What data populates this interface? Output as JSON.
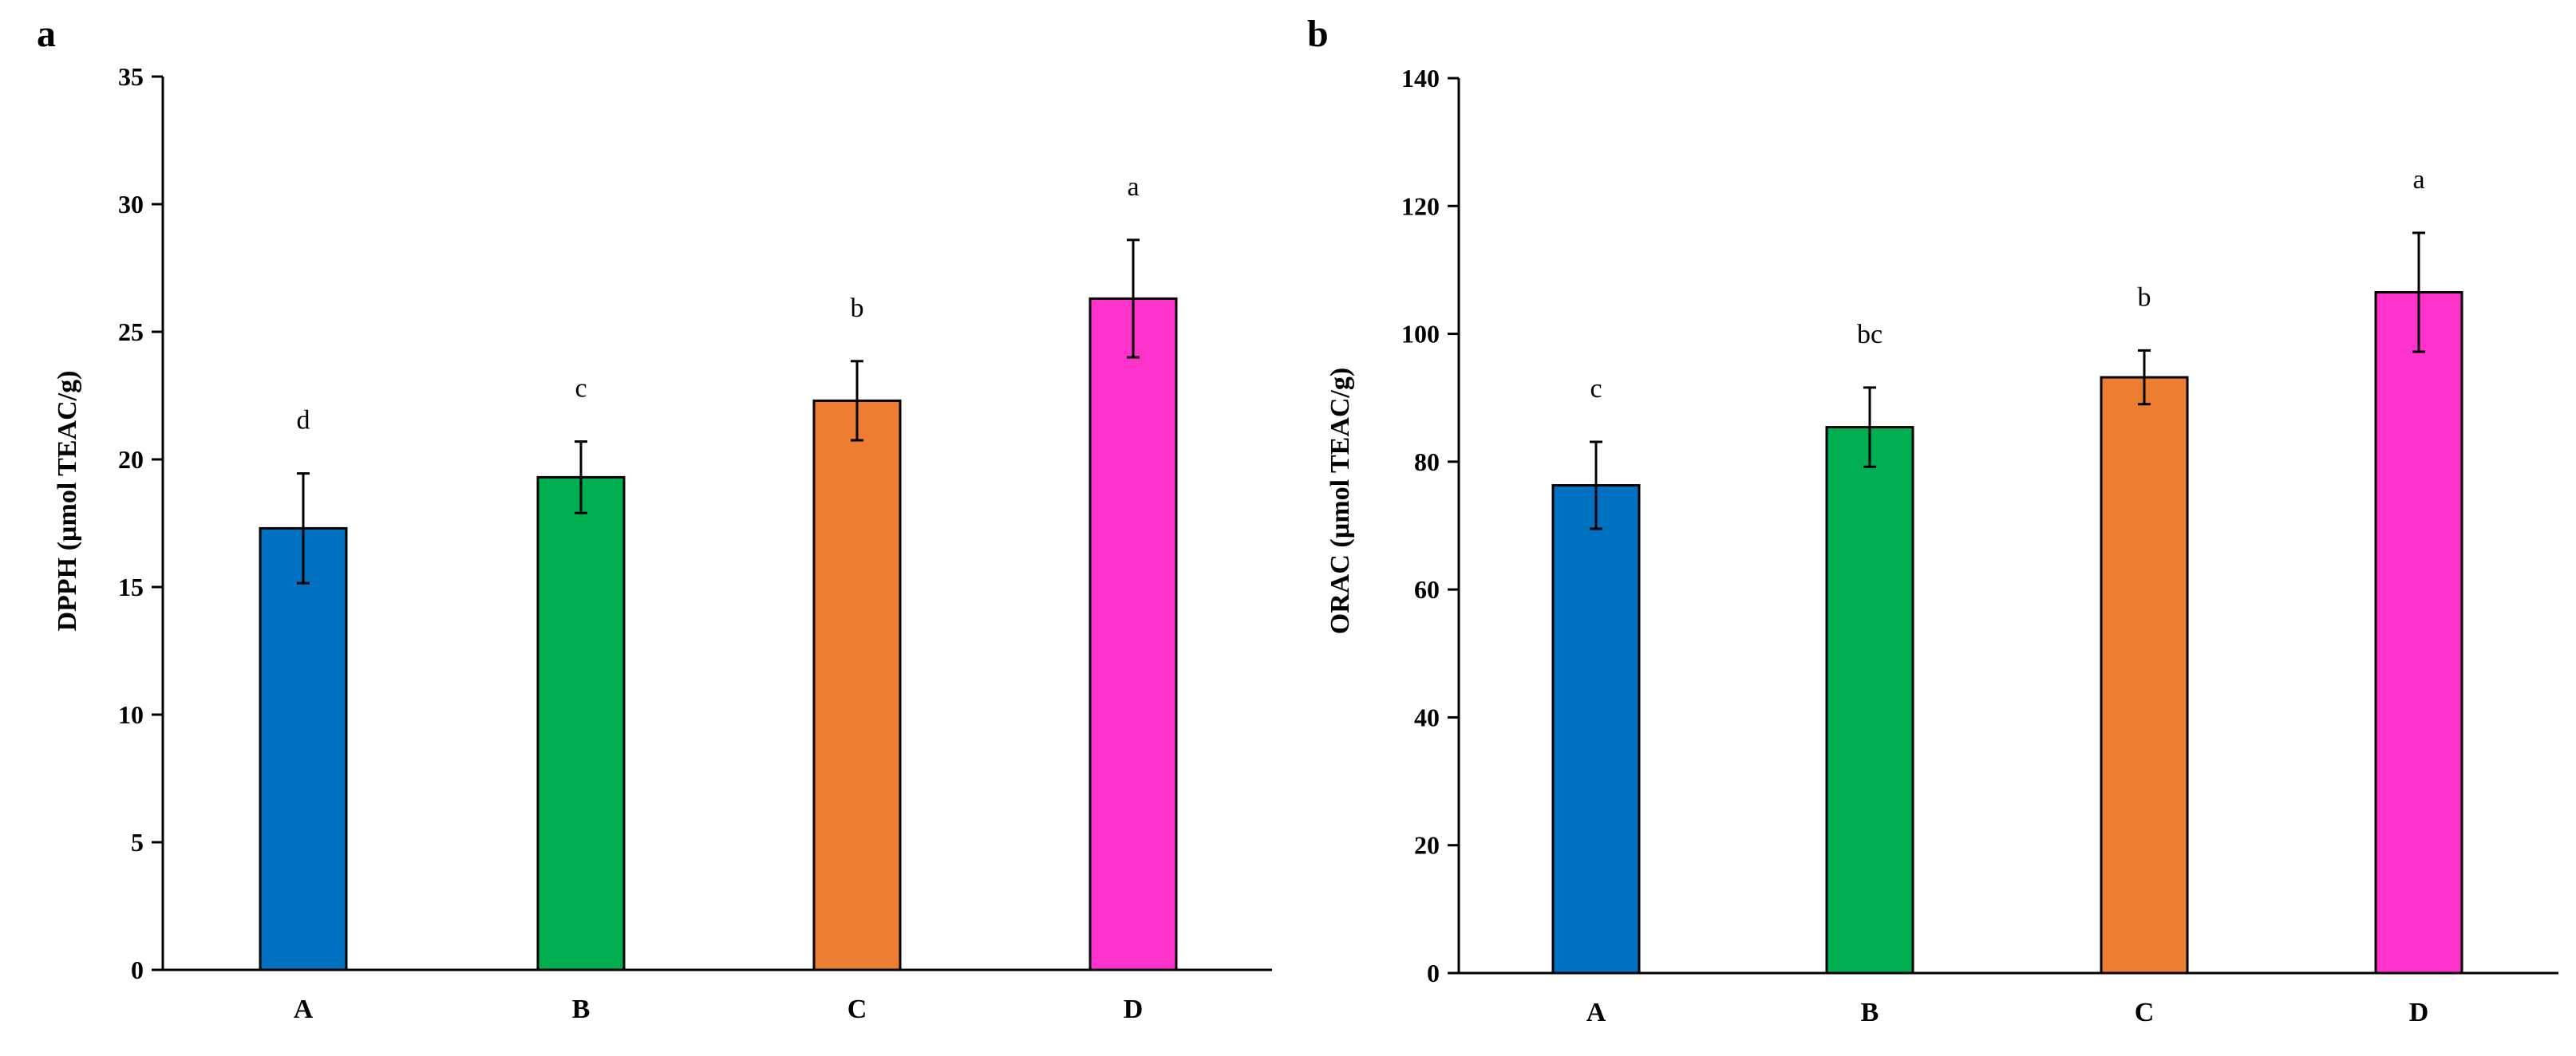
{
  "chart_data": [
    {
      "panel": "a",
      "type": "bar",
      "title": "",
      "xlabel": "",
      "ylabel": "DPPH (µmol TEAC/g)",
      "ylim": [
        0,
        35
      ],
      "yticks": [
        0,
        5,
        10,
        15,
        20,
        25,
        30,
        35
      ],
      "grid": false,
      "categories": [
        "A",
        "B",
        "C",
        "D"
      ],
      "values": [
        17.3,
        19.3,
        22.3,
        26.3
      ],
      "errors": [
        2.15,
        1.4,
        1.55,
        2.3
      ],
      "significance": [
        "d",
        "c",
        "b",
        "a"
      ],
      "colors": [
        "#0070C0",
        "#00B050",
        "#ED7D31",
        "#FF33CC"
      ]
    },
    {
      "panel": "b",
      "type": "bar",
      "title": "",
      "xlabel": "",
      "ylabel": "ORAC (µmol TEAC/g)",
      "ylim": [
        0,
        140
      ],
      "yticks": [
        0,
        20,
        40,
        60,
        80,
        100,
        120,
        140
      ],
      "grid": false,
      "categories": [
        "A",
        "B",
        "C",
        "D"
      ],
      "values": [
        76.3,
        85.4,
        93.2,
        106.5
      ],
      "errors": [
        6.8,
        6.2,
        4.2,
        9.3
      ],
      "significance": [
        "c",
        "bc",
        "b",
        "a"
      ],
      "colors": [
        "#0070C0",
        "#00B050",
        "#ED7D31",
        "#FF33CC"
      ]
    }
  ]
}
